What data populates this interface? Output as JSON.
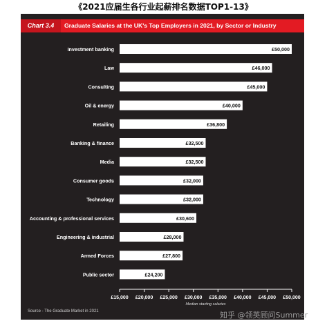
{
  "page_heading": "《2021应届生各行业起薪排名数据TOP1-13》",
  "banner": {
    "chart_number": "Chart 3.4",
    "title": "Graduate Salaries at the UK's Top Employers in 2021, by Sector or Industry"
  },
  "source": "Source - The Graduate Market in 2021",
  "watermark": "知乎 @领英顾问Summer",
  "colors": {
    "panel": "#231f20",
    "banner": "#e31b23",
    "bar": "#ffffff",
    "text": "#ffffff"
  },
  "chart_data": {
    "type": "bar",
    "orientation": "horizontal",
    "categories": [
      "Investment banking",
      "Law",
      "Consulting",
      "Oil & energy",
      "Retailing",
      "Banking & finance",
      "Media",
      "Consumer goods",
      "Technology",
      "Accounting & professional services",
      "Engineering & industrial",
      "Armed Forces",
      "Public sector"
    ],
    "values": [
      50000,
      46000,
      45000,
      40000,
      36800,
      32500,
      32500,
      32000,
      32000,
      30600,
      28000,
      27800,
      24200
    ],
    "data_labels": [
      "£50,000",
      "£46,000",
      "£45,000",
      "£40,000",
      "£36,800",
      "£32,500",
      "£32,500",
      "£32,000",
      "£32,000",
      "£30,600",
      "£28,000",
      "£27,800",
      "£24,200"
    ],
    "xlim": [
      15000,
      50000
    ],
    "xticks": [
      15000,
      20000,
      25000,
      30000,
      35000,
      40000,
      45000,
      50000
    ],
    "xtick_labels": [
      "£15,000",
      "£20,000",
      "£25,000",
      "£30,000",
      "£35,000",
      "£40,000",
      "£45,000",
      "£50,000"
    ],
    "xlabel": "Median starting salaries",
    "ylabel": "",
    "grid": false,
    "legend": "none"
  }
}
